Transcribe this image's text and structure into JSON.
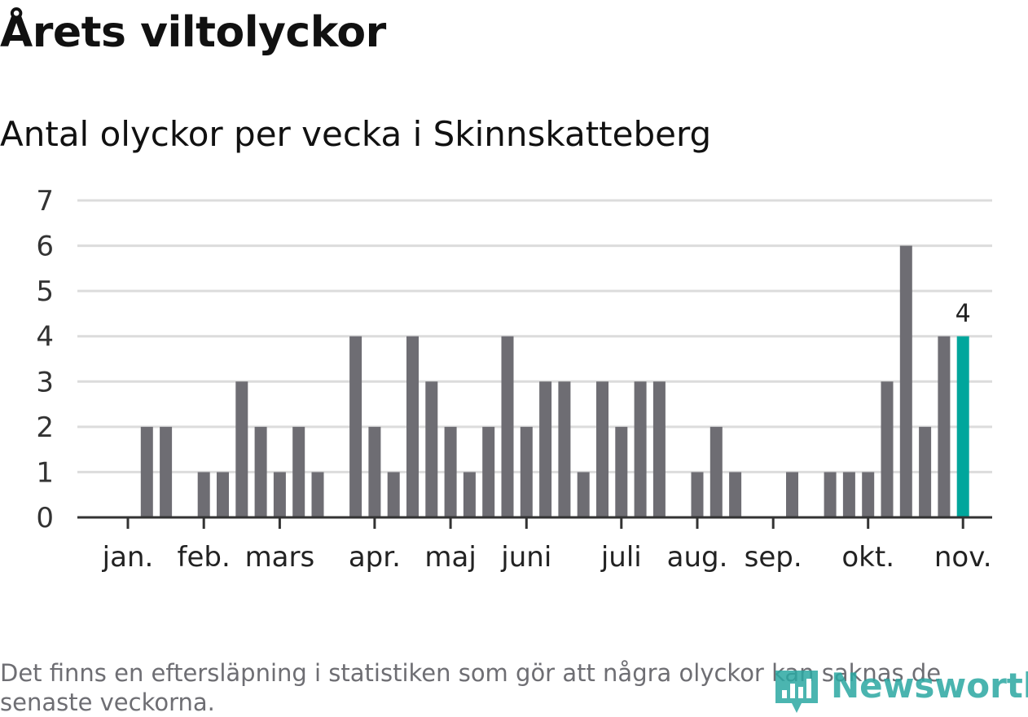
{
  "title": "Årets viltolyckor",
  "subtitle": "Antal olyckor per vecka i Skinnskatteberg",
  "footnote": "Det finns en eftersläpning i statistiken som gör att några olyckor kan saknas de senaste veckorna.",
  "logo": {
    "name": "Newsworthy",
    "icon": "bar-chart-pin-icon"
  },
  "colors": {
    "bar": "#6e6d73",
    "highlight": "#00a69c",
    "grid": "#dcdcdc",
    "axis": "#333333",
    "logo": "#2ba8a2"
  },
  "chart_data": {
    "type": "bar",
    "title": "Antal olyckor per vecka i Skinnskatteberg",
    "xlabel": "",
    "ylabel": "",
    "ylim": [
      0,
      7
    ],
    "yticks": [
      0,
      1,
      2,
      3,
      4,
      5,
      6,
      7
    ],
    "weeks": [
      1,
      2,
      3,
      4,
      5,
      6,
      7,
      8,
      9,
      10,
      11,
      12,
      13,
      14,
      15,
      16,
      17,
      18,
      19,
      20,
      21,
      22,
      23,
      24,
      25,
      26,
      27,
      28,
      29,
      30,
      31,
      32,
      33,
      34,
      35,
      36,
      37,
      38,
      39,
      40,
      41,
      42,
      43,
      44,
      45,
      46
    ],
    "values": [
      0,
      2,
      2,
      0,
      1,
      1,
      3,
      2,
      1,
      2,
      1,
      0,
      4,
      2,
      1,
      4,
      3,
      2,
      1,
      2,
      4,
      2,
      3,
      3,
      1,
      3,
      2,
      3,
      3,
      0,
      1,
      2,
      1,
      0,
      0,
      1,
      0,
      1,
      1,
      1,
      3,
      6,
      2,
      4,
      4,
      0
    ],
    "highlight_week": 45,
    "highlight_label": "4",
    "month_labels": [
      {
        "label": "jan.",
        "week": 1
      },
      {
        "label": "feb.",
        "week": 5
      },
      {
        "label": "mars",
        "week": 9
      },
      {
        "label": "apr.",
        "week": 14
      },
      {
        "label": "maj",
        "week": 18
      },
      {
        "label": "juni",
        "week": 22
      },
      {
        "label": "juli",
        "week": 27
      },
      {
        "label": "aug.",
        "week": 31
      },
      {
        "label": "sep.",
        "week": 35
      },
      {
        "label": "okt.",
        "week": 40
      },
      {
        "label": "nov.",
        "week": 45
      }
    ]
  }
}
